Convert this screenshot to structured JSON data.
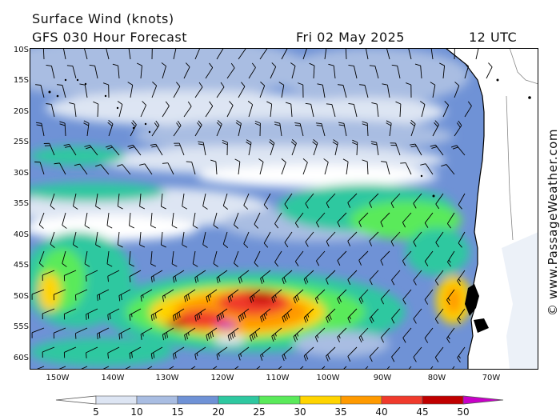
{
  "header": {
    "title": "Surface Wind (knots)",
    "subtitle": "GFS 030 Hour Forecast",
    "date": "Fri 02 May 2025",
    "time": "12 UTC"
  },
  "watermark": "© www.PassageWeather.com",
  "map": {
    "lat_labels": [
      "10S",
      "15S",
      "20S",
      "25S",
      "30S",
      "35S",
      "40S",
      "45S",
      "50S",
      "55S",
      "60S"
    ],
    "lon_labels": [
      "150W",
      "140W",
      "130W",
      "120W",
      "110W",
      "100W",
      "90W",
      "80W",
      "70W"
    ],
    "land_color": "#ffffff",
    "region": "South-east Pacific and southern South America"
  },
  "legend": {
    "labels": [
      "5",
      "10",
      "15",
      "20",
      "25",
      "30",
      "35",
      "40",
      "45",
      "50"
    ],
    "colors": [
      "#ffffff",
      "#dde5f3",
      "#a9bde2",
      "#6f92d6",
      "#2ec8a0",
      "#5aea5a",
      "#ffd400",
      "#ff9a00",
      "#f03a2c",
      "#c00000",
      "#c800c8"
    ]
  }
}
